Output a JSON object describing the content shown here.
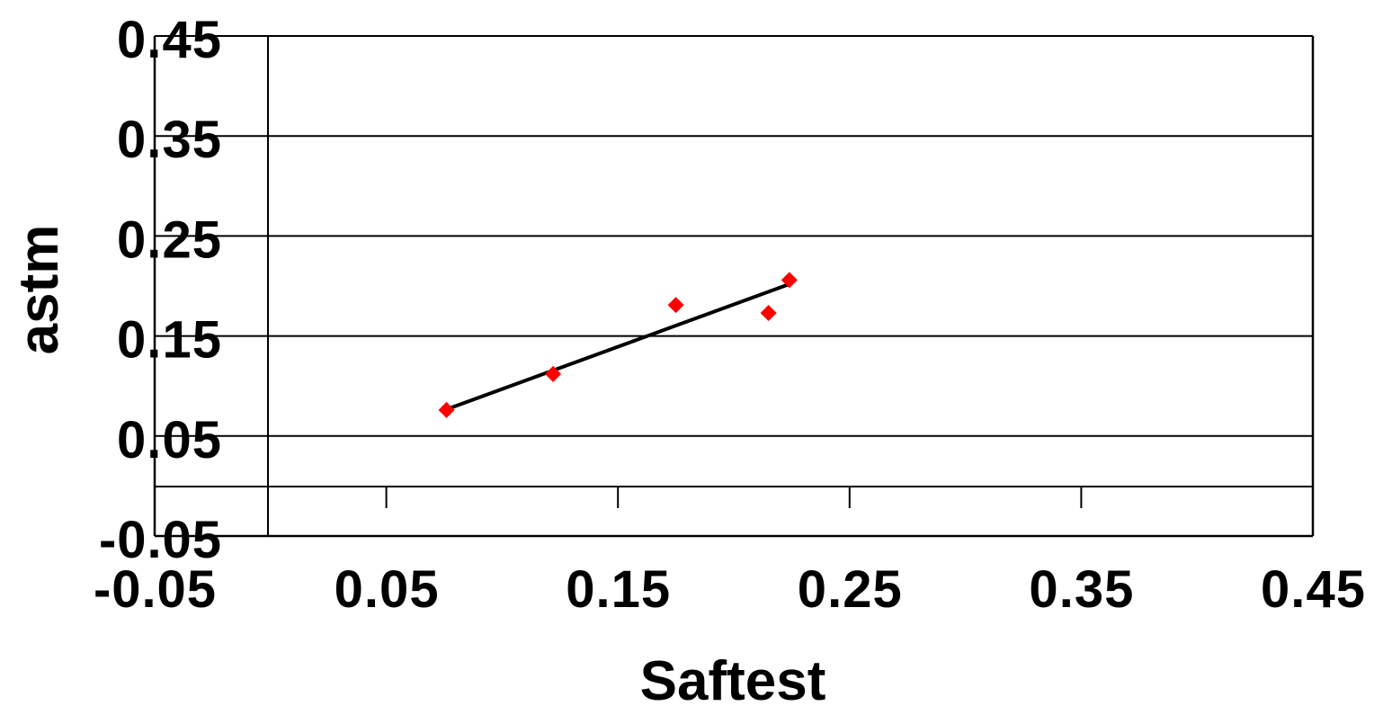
{
  "chart_data": {
    "type": "scatter",
    "title": "",
    "xlabel": "Saftest",
    "ylabel": "astm",
    "xlim": [
      -0.05,
      0.45
    ],
    "ylim": [
      -0.05,
      0.45
    ],
    "x_ticks": [
      -0.05,
      0.05,
      0.15,
      0.25,
      0.35,
      0.45
    ],
    "x_tick_labels": [
      "-0.05",
      "0.05",
      "0.15",
      "0.25",
      "0.35",
      "0.45"
    ],
    "y_ticks": [
      -0.05,
      0.05,
      0.15,
      0.25,
      0.35,
      0.45
    ],
    "y_tick_labels": [
      "-0.05",
      "0.05",
      "0.15",
      "0.25",
      "0.35",
      "0.45"
    ],
    "grid": true,
    "legend": "none",
    "colors": {
      "points": "#ff0000",
      "trendline": "#000000",
      "grid": "#000000"
    },
    "series": [
      {
        "marker": "diamond",
        "x": [
          0.076,
          0.122,
          0.175,
          0.215,
          0.224
        ],
        "y": [
          0.076,
          0.112,
          0.181,
          0.173,
          0.206
        ]
      }
    ],
    "trendline": {
      "type": "linear",
      "x": [
        0.077,
        0.223
      ],
      "y": [
        0.0775,
        0.201
      ]
    }
  }
}
